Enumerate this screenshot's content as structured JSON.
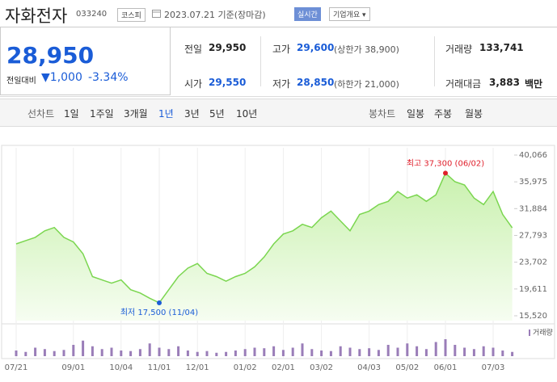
{
  "header": {
    "name": "자화전자",
    "code": "033240",
    "market": "코스피",
    "date": "2023.07.21 기준(장마감)",
    "realtime": "실시간",
    "company": "기업개요"
  },
  "summary": {
    "price": "28,950",
    "change_label": "전일대비",
    "change": "1,000",
    "change_pct": "-3.34%"
  },
  "stats": [
    {
      "label": "전일",
      "value": "29,950"
    },
    {
      "label": "고가",
      "value": "29,600",
      "extra": "(상한가 38,900)"
    },
    {
      "label": "거래량",
      "value": "133,741"
    },
    {
      "label": "시가",
      "value": "29,550"
    },
    {
      "label": "저가",
      "value": "28,850",
      "extra": "(하한가 21,000)"
    },
    {
      "label": "거래대금",
      "value": "3,883",
      "unit": "백만"
    }
  ],
  "tabs": {
    "line_label": "선차트",
    "line": [
      "1일",
      "1주일",
      "3개월",
      "1년",
      "3년",
      "5년",
      "10년"
    ],
    "selected": "1년",
    "candle_label": "봉차트",
    "candle": [
      "일봉",
      "주봉",
      "월봉"
    ]
  },
  "chart_data": [
    {
      "type": "line",
      "color": "#7bd650",
      "fill": "#e4f8d6",
      "ylim": [
        15520,
        40066
      ],
      "yticks": [
        {
          "value": 15520,
          "label": "15,520"
        },
        {
          "value": 19611,
          "label": "19,611"
        },
        {
          "value": 23702,
          "label": "23,702"
        },
        {
          "value": 27793,
          "label": "27,793"
        },
        {
          "value": 31884,
          "label": "31,884"
        },
        {
          "value": 35975,
          "label": "35,975"
        },
        {
          "value": 40066,
          "label": "40,066"
        }
      ],
      "values": [
        26500,
        27000,
        27500,
        28500,
        29000,
        27500,
        26800,
        25000,
        21500,
        21000,
        20500,
        21000,
        19500,
        19000,
        18200,
        17500,
        19500,
        21500,
        22800,
        23500,
        22000,
        21500,
        20800,
        21500,
        22000,
        23000,
        24500,
        26500,
        28000,
        28500,
        29500,
        29000,
        30500,
        31500,
        30000,
        28500,
        31000,
        31500,
        32500,
        33000,
        34500,
        33500,
        34000,
        33000,
        34000,
        37300,
        36000,
        35500,
        33500,
        32500,
        34500,
        31000,
        28950
      ],
      "max_label": "최고 37,300 (06/02)",
      "min_label": "최저 17,500 (11/04)",
      "grid": true
    },
    {
      "type": "bar",
      "name": "거래량",
      "color": "#9a7db8",
      "ylim": [
        0,
        100
      ],
      "categories": [
        "07/21",
        null,
        null,
        null,
        null,
        null,
        "09/01",
        null,
        null,
        null,
        null,
        "10/04",
        null,
        null,
        null,
        "11/01",
        null,
        null,
        null,
        "12/01",
        null,
        null,
        null,
        null,
        "01/02",
        null,
        null,
        null,
        "02/01",
        null,
        null,
        null,
        "03/02",
        null,
        null,
        null,
        null,
        "04/03",
        null,
        null,
        null,
        "05/02",
        null,
        null,
        null,
        "06/01",
        null,
        null,
        null,
        null,
        "07/03",
        null,
        null
      ],
      "values": [
        20,
        15,
        30,
        25,
        18,
        22,
        40,
        55,
        35,
        25,
        30,
        20,
        18,
        25,
        45,
        30,
        25,
        35,
        20,
        15,
        18,
        12,
        15,
        20,
        25,
        30,
        28,
        35,
        22,
        30,
        45,
        25,
        20,
        18,
        35,
        30,
        25,
        28,
        22,
        40,
        30,
        45,
        35,
        25,
        50,
        60,
        40,
        30,
        25,
        35,
        30,
        20,
        15
      ]
    }
  ]
}
